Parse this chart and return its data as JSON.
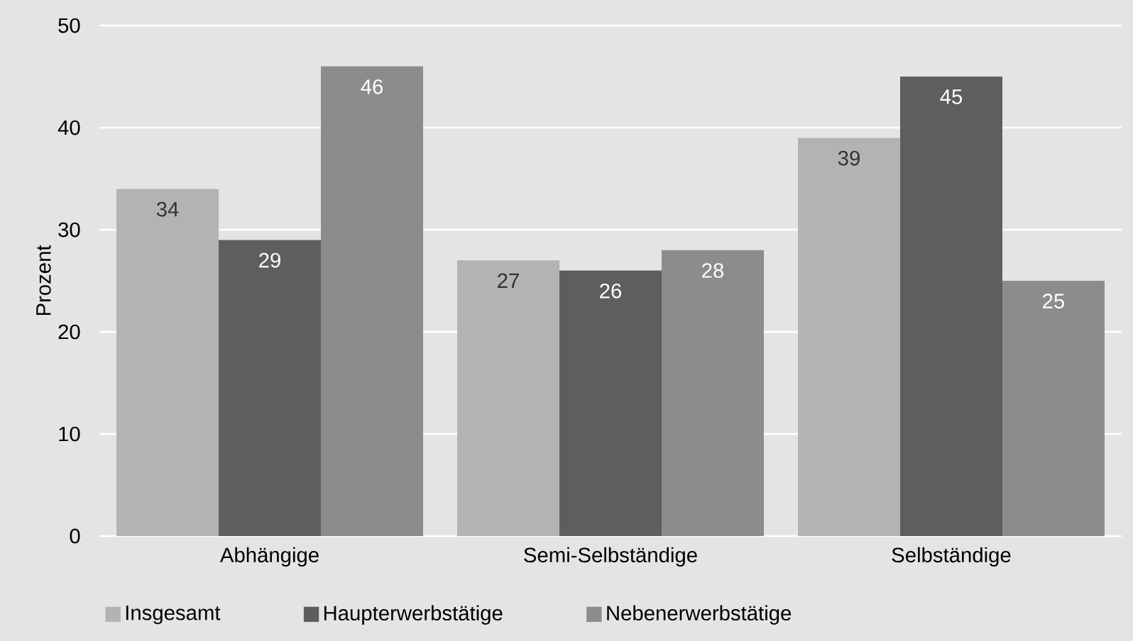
{
  "chart_data": {
    "type": "bar",
    "ylabel": "Prozent",
    "categories": [
      "Abhängige",
      "Semi-Selbständige",
      "Selbständige"
    ],
    "series": [
      {
        "name": "Insgesamt",
        "color": "#b3b3b3",
        "values": [
          34,
          27,
          39
        ]
      },
      {
        "name": "Haupterwerbstätige",
        "color": "#5e5e5e",
        "values": [
          29,
          26,
          45
        ]
      },
      {
        "name": "Nebenerwerbstätige",
        "color": "#8c8c8c",
        "values": [
          46,
          28,
          25
        ]
      }
    ],
    "ylim": [
      0,
      50
    ],
    "yticks": [
      0,
      10,
      20,
      30,
      40,
      50
    ],
    "grid": "y",
    "legend": "bottom left",
    "data_labels": true
  }
}
